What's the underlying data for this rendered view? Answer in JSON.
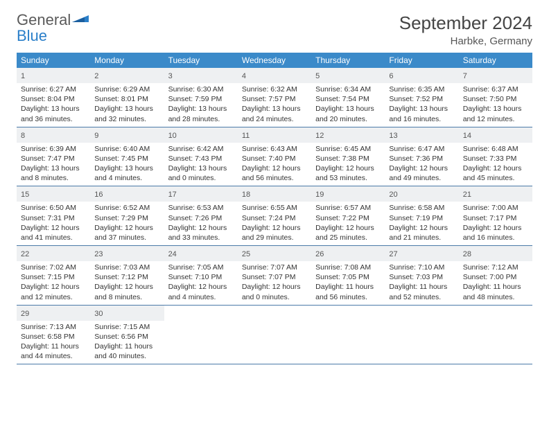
{
  "logo": {
    "text1": "General",
    "text2": "Blue"
  },
  "title": "September 2024",
  "location": "Harbke, Germany",
  "colors": {
    "header_bg": "#3b8ac9",
    "header_text": "#ffffff",
    "daynum_bg": "#eef0f2",
    "week_border": "#4a7aa8",
    "body_text": "#333333",
    "logo_gray": "#5a5a5a",
    "logo_blue": "#2a7fc9"
  },
  "daynames": [
    "Sunday",
    "Monday",
    "Tuesday",
    "Wednesday",
    "Thursday",
    "Friday",
    "Saturday"
  ],
  "days": [
    {
      "n": "1",
      "sunrise": "Sunrise: 6:27 AM",
      "sunset": "Sunset: 8:04 PM",
      "daylight": "Daylight: 13 hours and 36 minutes."
    },
    {
      "n": "2",
      "sunrise": "Sunrise: 6:29 AM",
      "sunset": "Sunset: 8:01 PM",
      "daylight": "Daylight: 13 hours and 32 minutes."
    },
    {
      "n": "3",
      "sunrise": "Sunrise: 6:30 AM",
      "sunset": "Sunset: 7:59 PM",
      "daylight": "Daylight: 13 hours and 28 minutes."
    },
    {
      "n": "4",
      "sunrise": "Sunrise: 6:32 AM",
      "sunset": "Sunset: 7:57 PM",
      "daylight": "Daylight: 13 hours and 24 minutes."
    },
    {
      "n": "5",
      "sunrise": "Sunrise: 6:34 AM",
      "sunset": "Sunset: 7:54 PM",
      "daylight": "Daylight: 13 hours and 20 minutes."
    },
    {
      "n": "6",
      "sunrise": "Sunrise: 6:35 AM",
      "sunset": "Sunset: 7:52 PM",
      "daylight": "Daylight: 13 hours and 16 minutes."
    },
    {
      "n": "7",
      "sunrise": "Sunrise: 6:37 AM",
      "sunset": "Sunset: 7:50 PM",
      "daylight": "Daylight: 13 hours and 12 minutes."
    },
    {
      "n": "8",
      "sunrise": "Sunrise: 6:39 AM",
      "sunset": "Sunset: 7:47 PM",
      "daylight": "Daylight: 13 hours and 8 minutes."
    },
    {
      "n": "9",
      "sunrise": "Sunrise: 6:40 AM",
      "sunset": "Sunset: 7:45 PM",
      "daylight": "Daylight: 13 hours and 4 minutes."
    },
    {
      "n": "10",
      "sunrise": "Sunrise: 6:42 AM",
      "sunset": "Sunset: 7:43 PM",
      "daylight": "Daylight: 13 hours and 0 minutes."
    },
    {
      "n": "11",
      "sunrise": "Sunrise: 6:43 AM",
      "sunset": "Sunset: 7:40 PM",
      "daylight": "Daylight: 12 hours and 56 minutes."
    },
    {
      "n": "12",
      "sunrise": "Sunrise: 6:45 AM",
      "sunset": "Sunset: 7:38 PM",
      "daylight": "Daylight: 12 hours and 53 minutes."
    },
    {
      "n": "13",
      "sunrise": "Sunrise: 6:47 AM",
      "sunset": "Sunset: 7:36 PM",
      "daylight": "Daylight: 12 hours and 49 minutes."
    },
    {
      "n": "14",
      "sunrise": "Sunrise: 6:48 AM",
      "sunset": "Sunset: 7:33 PM",
      "daylight": "Daylight: 12 hours and 45 minutes."
    },
    {
      "n": "15",
      "sunrise": "Sunrise: 6:50 AM",
      "sunset": "Sunset: 7:31 PM",
      "daylight": "Daylight: 12 hours and 41 minutes."
    },
    {
      "n": "16",
      "sunrise": "Sunrise: 6:52 AM",
      "sunset": "Sunset: 7:29 PM",
      "daylight": "Daylight: 12 hours and 37 minutes."
    },
    {
      "n": "17",
      "sunrise": "Sunrise: 6:53 AM",
      "sunset": "Sunset: 7:26 PM",
      "daylight": "Daylight: 12 hours and 33 minutes."
    },
    {
      "n": "18",
      "sunrise": "Sunrise: 6:55 AM",
      "sunset": "Sunset: 7:24 PM",
      "daylight": "Daylight: 12 hours and 29 minutes."
    },
    {
      "n": "19",
      "sunrise": "Sunrise: 6:57 AM",
      "sunset": "Sunset: 7:22 PM",
      "daylight": "Daylight: 12 hours and 25 minutes."
    },
    {
      "n": "20",
      "sunrise": "Sunrise: 6:58 AM",
      "sunset": "Sunset: 7:19 PM",
      "daylight": "Daylight: 12 hours and 21 minutes."
    },
    {
      "n": "21",
      "sunrise": "Sunrise: 7:00 AM",
      "sunset": "Sunset: 7:17 PM",
      "daylight": "Daylight: 12 hours and 16 minutes."
    },
    {
      "n": "22",
      "sunrise": "Sunrise: 7:02 AM",
      "sunset": "Sunset: 7:15 PM",
      "daylight": "Daylight: 12 hours and 12 minutes."
    },
    {
      "n": "23",
      "sunrise": "Sunrise: 7:03 AM",
      "sunset": "Sunset: 7:12 PM",
      "daylight": "Daylight: 12 hours and 8 minutes."
    },
    {
      "n": "24",
      "sunrise": "Sunrise: 7:05 AM",
      "sunset": "Sunset: 7:10 PM",
      "daylight": "Daylight: 12 hours and 4 minutes."
    },
    {
      "n": "25",
      "sunrise": "Sunrise: 7:07 AM",
      "sunset": "Sunset: 7:07 PM",
      "daylight": "Daylight: 12 hours and 0 minutes."
    },
    {
      "n": "26",
      "sunrise": "Sunrise: 7:08 AM",
      "sunset": "Sunset: 7:05 PM",
      "daylight": "Daylight: 11 hours and 56 minutes."
    },
    {
      "n": "27",
      "sunrise": "Sunrise: 7:10 AM",
      "sunset": "Sunset: 7:03 PM",
      "daylight": "Daylight: 11 hours and 52 minutes."
    },
    {
      "n": "28",
      "sunrise": "Sunrise: 7:12 AM",
      "sunset": "Sunset: 7:00 PM",
      "daylight": "Daylight: 11 hours and 48 minutes."
    },
    {
      "n": "29",
      "sunrise": "Sunrise: 7:13 AM",
      "sunset": "Sunset: 6:58 PM",
      "daylight": "Daylight: 11 hours and 44 minutes."
    },
    {
      "n": "30",
      "sunrise": "Sunrise: 7:15 AM",
      "sunset": "Sunset: 6:56 PM",
      "daylight": "Daylight: 11 hours and 40 minutes."
    }
  ],
  "layout": {
    "start_weekday": 0,
    "rows": 5,
    "cols": 7
  }
}
